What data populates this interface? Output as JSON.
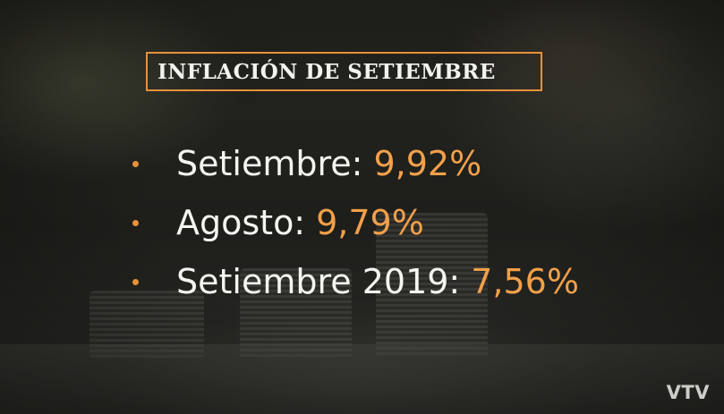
{
  "title": "INFLACIÓN DE SETIEMBRE",
  "items": [
    {
      "label": "Setiembre:",
      "value": "9,92%"
    },
    {
      "label": "Agosto:",
      "value": "9,79%"
    },
    {
      "label": "Setiembre 2019:",
      "value": "7,56%"
    }
  ],
  "logo": "VTV",
  "colors": {
    "accent": "#e8913a",
    "value": "#f2a04a",
    "text": "#f4f4f0"
  }
}
